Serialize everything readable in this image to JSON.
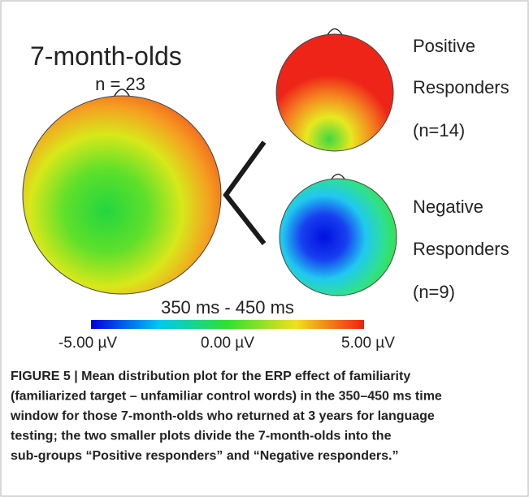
{
  "figure": {
    "group_title": "7-month-olds",
    "group_n": "n = 23",
    "subgroups": [
      {
        "lines": [
          "Positive",
          "Responders",
          "(n=14)"
        ]
      },
      {
        "lines": [
          "Negative",
          "Responders",
          "(n=9)"
        ]
      }
    ],
    "time_window": "350 ms - 450 ms",
    "colorbar_labels": [
      "-5.00 µV",
      "0.00 µV",
      "5.00 µV"
    ],
    "caption_lines": [
      "FIGURE 5 | Mean distribution plot for the ERP effect of familiarity",
      "(familiarized target – unfamiliar control words) in the 350–450 ms time",
      "window for those 7-month-olds who returned at 3 years for language",
      "testing; the two smaller plots divide the 7-month-olds into the",
      "sub-groups “Positive responders” and “Negative responders.”"
    ]
  }
}
